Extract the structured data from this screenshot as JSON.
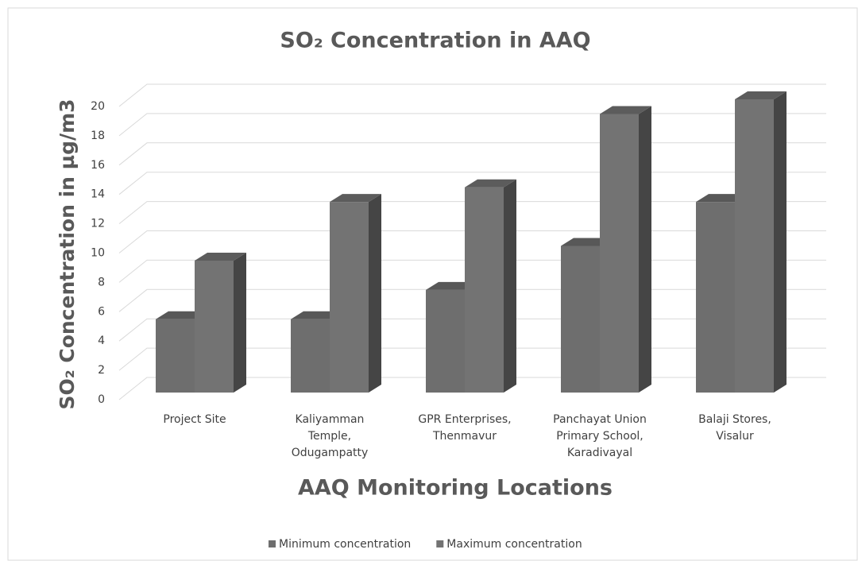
{
  "chart_data": {
    "type": "bar3d",
    "title": "SO₂ Concentration in AAQ",
    "y_label": "SO₂ Concentration in µg/m3",
    "x_label": "AAQ Monitoring Locations",
    "categories": [
      "Project Site",
      "Kaliyamman Temple, Odugampatty",
      "GPR Enterprises, Thenmavur",
      "Panchayat Union Primary School, Karadivayal",
      "Balaji Stores, Visalur"
    ],
    "series": [
      {
        "name": "Minimum concentration",
        "color": "#6e6e6e",
        "values": [
          5,
          5,
          7,
          10,
          13
        ]
      },
      {
        "name": "Maximum concentration",
        "color": "#737373",
        "values": [
          9,
          13,
          14,
          19,
          20
        ]
      }
    ],
    "ylim": [
      0,
      20
    ],
    "yticks": [
      0,
      2,
      4,
      6,
      8,
      10,
      12,
      14,
      16,
      18,
      20
    ],
    "grid": true,
    "legend": "bottom"
  }
}
